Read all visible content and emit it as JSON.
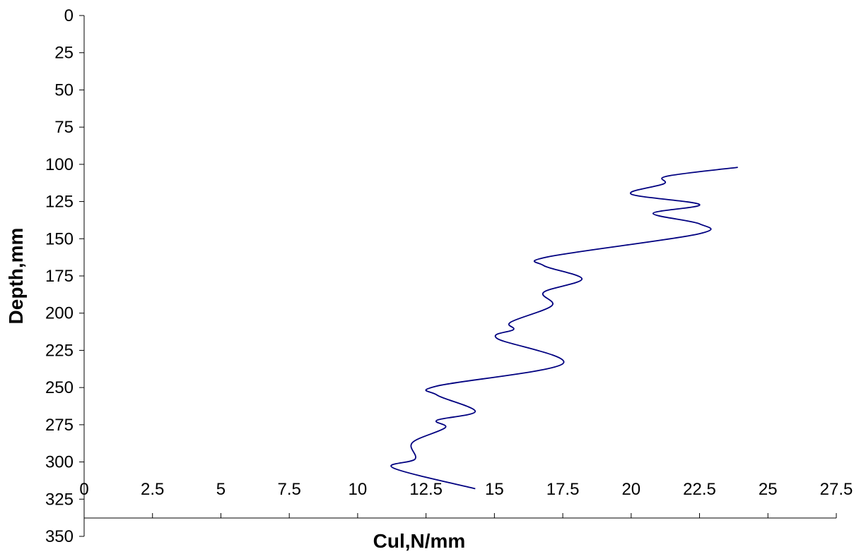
{
  "chart_data": {
    "type": "line",
    "title": "",
    "xlabel": "Cul,N/mm",
    "ylabel": "Depth,mm",
    "xlim": [
      0,
      27.5
    ],
    "ylim": [
      0,
      350
    ],
    "y_inverted": true,
    "x_ticks": [
      "0",
      "2.5",
      "5",
      "7.5",
      "10",
      "12.5",
      "15",
      "17.5",
      "20",
      "22.5",
      "25",
      "27.5"
    ],
    "y_ticks": [
      "0",
      "25",
      "50",
      "75",
      "100",
      "125",
      "150",
      "175",
      "200",
      "225",
      "250",
      "275",
      "300",
      "325",
      "350"
    ],
    "grid": false,
    "legend": "none",
    "series": [
      {
        "color": "#000080",
        "x": [
          23.9,
          21.3,
          21.2,
          20.0,
          22.5,
          20.8,
          22.5,
          22.4,
          17.0,
          16.8,
          18.2,
          16.8,
          17.1,
          15.6,
          15.7,
          15.1,
          17.5,
          12.9,
          12.9,
          14.3,
          12.9,
          13.2,
          12.0,
          12.1,
          11.3,
          14.3
        ],
        "y": [
          102,
          108,
          113,
          120,
          127,
          133,
          140,
          147,
          162,
          168,
          177,
          186,
          195,
          206,
          211,
          217,
          234,
          249,
          255,
          266,
          272,
          277,
          287,
          298,
          304,
          318
        ]
      }
    ]
  }
}
